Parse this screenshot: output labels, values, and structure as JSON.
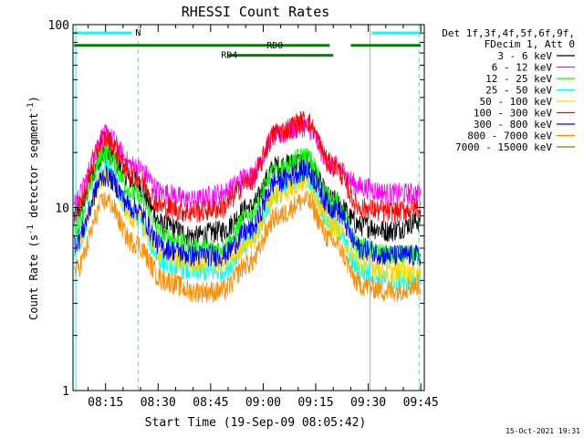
{
  "chart_data": {
    "type": "line",
    "title": "RHESSI Count Rates",
    "xlabel": "Start Time (19-Sep-09 08:05:42)",
    "ylabel": "Count Rate (s",
    "ylabel_sup1": "-1",
    "ylabel_mid": " detector segment",
    "ylabel_sup2": "-1",
    "ylabel_end": ")",
    "x_unit": "minutes since 08:00",
    "xlim": [
      5.7,
      106
    ],
    "ylim": [
      1,
      100
    ],
    "y_scale": "log",
    "y_ticks": [
      {
        "value": 1,
        "label": "1"
      },
      {
        "value": 10,
        "label": "10"
      },
      {
        "value": 100,
        "label": "100"
      }
    ],
    "x_ticks": [
      {
        "value": 15,
        "label": "08:15"
      },
      {
        "value": 30,
        "label": "08:30"
      },
      {
        "value": 45,
        "label": "08:45"
      },
      {
        "value": 60,
        "label": "09:00"
      },
      {
        "value": 75,
        "label": "09:15"
      },
      {
        "value": 90,
        "label": "09:30"
      },
      {
        "value": 105,
        "label": "09:45"
      }
    ],
    "legend_header": [
      "Det 1f,3f,4f,5f,6f,9f,",
      "FDecim 1, Att 0"
    ],
    "legend_position": "right",
    "series": [
      {
        "name": "3 - 6 keV",
        "color": "#000000",
        "x": [
          6,
          15,
          23,
          32,
          40,
          48,
          56,
          64,
          72,
          80,
          88,
          96,
          105
        ],
        "y": [
          9,
          20,
          14,
          8,
          7,
          7.5,
          10,
          17,
          18,
          11,
          8,
          7.5,
          8.5
        ]
      },
      {
        "name": "6 - 12 keV",
        "color": "#ff00ff",
        "x": [
          6,
          15,
          23,
          32,
          40,
          48,
          56,
          64,
          72,
          80,
          88,
          96,
          105
        ],
        "y": [
          11,
          25,
          17,
          12,
          11,
          12,
          15,
          25,
          28,
          17,
          13,
          12,
          12
        ]
      },
      {
        "name": "12 - 25 keV",
        "color": "#00ff00",
        "x": [
          6,
          15,
          23,
          32,
          40,
          48,
          56,
          64,
          72,
          80,
          88,
          96,
          105
        ],
        "y": [
          8,
          20,
          12,
          7,
          6,
          6,
          9,
          16,
          19,
          11,
          6,
          5.5,
          5.5
        ]
      },
      {
        "name": "25 - 50 keV",
        "color": "#00ffff",
        "x": [
          6,
          15,
          23,
          32,
          40,
          48,
          56,
          64,
          72,
          80,
          88,
          96,
          105
        ],
        "y": [
          6,
          16,
          9,
          5,
          4.5,
          4.5,
          6.5,
          12,
          15,
          8,
          4.5,
          4,
          4
        ]
      },
      {
        "name": "50 - 100 keV",
        "color": "#ffd700",
        "x": [
          6,
          15,
          23,
          32,
          40,
          48,
          56,
          64,
          72,
          80,
          88,
          96,
          105
        ],
        "y": [
          6,
          15,
          9,
          5.5,
          5,
          5,
          6.5,
          12,
          14,
          8,
          5,
          4.5,
          4.5
        ]
      },
      {
        "name": "100 - 300 keV",
        "color": "#ff0000",
        "x": [
          6,
          15,
          23,
          32,
          40,
          48,
          56,
          64,
          72,
          80,
          88,
          96,
          105
        ],
        "y": [
          9.5,
          24,
          15,
          10,
          9.5,
          10,
          14,
          26,
          30,
          17,
          10,
          9.5,
          10
        ]
      },
      {
        "name": "300 - 800 keV",
        "color": "#0000ff",
        "x": [
          6,
          15,
          23,
          32,
          40,
          48,
          56,
          64,
          72,
          80,
          88,
          96,
          105
        ],
        "y": [
          6.5,
          15,
          10,
          6,
          5.5,
          5.5,
          7.5,
          14,
          16,
          10,
          6,
          5.5,
          5.5
        ]
      },
      {
        "name": "800 - 7000 keV",
        "color": "#ff8c00",
        "x": [
          6,
          15,
          23,
          32,
          40,
          48,
          56,
          64,
          72,
          80,
          88,
          96,
          105
        ],
        "y": [
          4.5,
          11,
          6.5,
          4,
          3.5,
          3.5,
          5,
          9,
          11,
          6.5,
          3.8,
          3.5,
          3.8
        ]
      },
      {
        "name": "7000 - 15000 keV",
        "color": "#808000",
        "x": [
          6,
          15,
          23,
          32,
          40,
          48,
          56,
          64,
          72,
          80,
          88,
          96,
          105
        ],
        "y": [
          null,
          null,
          null,
          null,
          null,
          null,
          null,
          null,
          null,
          null,
          null,
          null,
          null
        ]
      }
    ],
    "annotations": [
      {
        "text": "N",
        "color": "#00ffff",
        "label_x": 23.5
      },
      {
        "text": "RD0",
        "color": "#008000",
        "label_x": 61
      },
      {
        "text": "RD4",
        "color": "#008000",
        "label_x": 48
      }
    ],
    "flag_bars": [
      {
        "name": "night",
        "color": "#00ffff",
        "y": 90,
        "segments": [
          [
            6,
            22.5
          ],
          [
            91,
            105
          ]
        ]
      },
      {
        "name": "RD0",
        "color": "#008000",
        "y": 77,
        "segments": [
          [
            6,
            79
          ],
          [
            85,
            105
          ]
        ]
      },
      {
        "name": "RD4",
        "color": "#008000",
        "y": 68,
        "segments": [
          [
            50,
            80
          ]
        ]
      }
    ],
    "vlines": [
      {
        "x": 6.5,
        "color": "#00ffff",
        "style": "solid"
      },
      {
        "x": 24.3,
        "color": "#00ffff",
        "style": "dashed"
      },
      {
        "x": 90.5,
        "color": "#00ffff",
        "style": "solid"
      },
      {
        "x": 104.5,
        "color": "#00ffff",
        "style": "dashed"
      }
    ],
    "footer_date": "15-Oct-2021 19:31"
  }
}
